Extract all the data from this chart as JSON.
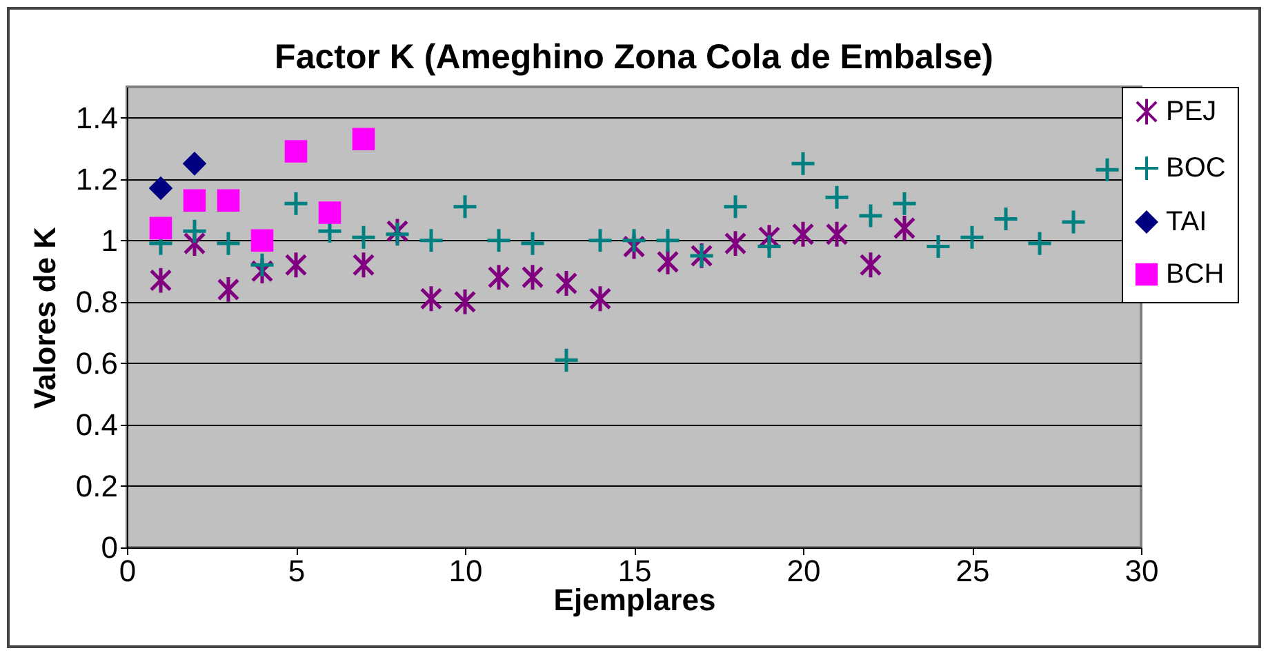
{
  "chart_data": {
    "type": "scatter",
    "title": "Factor K (Ameghino Zona Cola de Embalse)",
    "xlabel": "Ejemplares",
    "ylabel": "Valores de K",
    "xlim": [
      0,
      30
    ],
    "xticks": [
      0,
      5,
      10,
      15,
      20,
      25,
      30
    ],
    "ylim": [
      0,
      1.5
    ],
    "yticks": [
      0,
      0.2,
      0.4,
      0.6,
      0.8,
      1,
      1.2,
      1.4
    ],
    "grid": "y",
    "legend": "right",
    "series": [
      {
        "name": "PEJ",
        "color": "#800080",
        "x": [
          1,
          2,
          3,
          4,
          5,
          7,
          8,
          9,
          10,
          11,
          12,
          13,
          14,
          15,
          16,
          17,
          18,
          19,
          20,
          21,
          22,
          23
        ],
        "values": [
          0.87,
          0.99,
          0.84,
          0.9,
          0.92,
          0.92,
          1.03,
          0.81,
          0.8,
          0.88,
          0.88,
          0.86,
          0.81,
          0.98,
          0.93,
          0.95,
          0.99,
          1.01,
          1.02,
          1.02,
          0.92,
          1.04
        ]
      },
      {
        "name": "BOC",
        "color": "#008080",
        "marker": "cross",
        "x": [
          1,
          2,
          3,
          4,
          5,
          6,
          7,
          8,
          9,
          10,
          11,
          12,
          13,
          14,
          15,
          16,
          17,
          18,
          19,
          20,
          21,
          22,
          23,
          24,
          25,
          26,
          27,
          28,
          29
        ],
        "values": [
          0.99,
          1.03,
          0.99,
          0.92,
          1.12,
          1.03,
          1.01,
          1.02,
          1.0,
          1.11,
          1.0,
          0.99,
          0.61,
          1.0,
          1.0,
          1.0,
          0.95,
          1.11,
          0.98,
          1.25,
          1.14,
          1.08,
          1.12,
          0.98,
          1.01,
          1.07,
          0.99,
          1.06,
          1.23
        ]
      },
      {
        "name": "TAI",
        "color": "#000080",
        "marker": "diamond",
        "x": [
          1,
          2
        ],
        "values": [
          1.17,
          1.25
        ]
      },
      {
        "name": "BCH",
        "color": "#ff00ff",
        "marker": "square",
        "x": [
          1,
          2,
          3,
          4,
          5,
          6,
          7
        ],
        "values": [
          1.04,
          1.13,
          1.13,
          1.0,
          1.29,
          1.09,
          1.33
        ]
      }
    ]
  }
}
